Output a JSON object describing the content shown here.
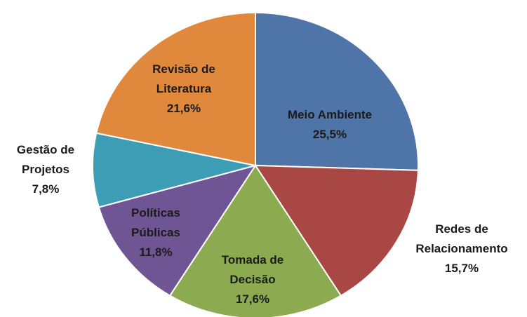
{
  "chart_data": {
    "type": "pie",
    "categories": [
      "Meio Ambiente",
      "Redes de Relacionamento",
      "Tomada de Decisão",
      "Políticas Públicas",
      "Gestão de Projetos",
      "Revisão de Literatura"
    ],
    "values": [
      25.5,
      15.7,
      17.6,
      11.8,
      7.8,
      21.6
    ],
    "value_labels": [
      "25,5%",
      "15,7%",
      "17,6%",
      "11,8%",
      "7,8%",
      "21,6%"
    ],
    "colors": [
      "#4f74a8",
      "#a94745",
      "#8caa50",
      "#6f5594",
      "#3d9db4",
      "#e0893d"
    ]
  }
}
